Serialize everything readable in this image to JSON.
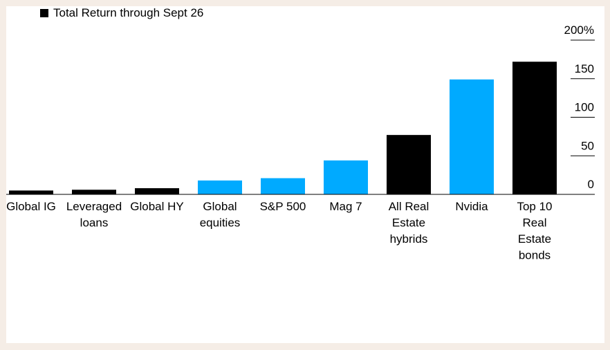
{
  "colors": {
    "background": "#f5ede6",
    "panel": "#ffffff",
    "black_series": "#000000",
    "blue_series": "#00aaff"
  },
  "legend": {
    "label": "Total Return through Sept 26",
    "icon": "black-square-icon"
  },
  "chart_data": {
    "type": "bar",
    "title": "",
    "xlabel": "",
    "ylabel": "",
    "ylim": [
      0,
      200
    ],
    "yticks": [
      0,
      50,
      100,
      150,
      200
    ],
    "ytick_labels": [
      "0",
      "50",
      "100",
      "150",
      "200%"
    ],
    "y_axis_position": "right",
    "grid": false,
    "legend_position": "top-left",
    "categories": [
      "Global IG",
      "Leveraged loans",
      "Global HY",
      "Global equities",
      "S&P 500",
      "Mag 7",
      "All Real Estate hybrids",
      "Nvidia",
      "Top 10 Real Estate bonds"
    ],
    "category_label_lines": [
      [
        "Global IG"
      ],
      [
        "Leveraged",
        "loans"
      ],
      [
        "Global HY"
      ],
      [
        "Global",
        "equities"
      ],
      [
        "S&P 500"
      ],
      [
        "Mag 7"
      ],
      [
        "All Real",
        "Estate",
        "hybrids"
      ],
      [
        "Nvidia"
      ],
      [
        "Top 10",
        "Real",
        "Estate",
        "bonds"
      ]
    ],
    "values": [
      5,
      6,
      8,
      18,
      21,
      44,
      77,
      149,
      172
    ],
    "bar_colors": [
      "#000000",
      "#000000",
      "#000000",
      "#00aaff",
      "#00aaff",
      "#00aaff",
      "#000000",
      "#00aaff",
      "#000000"
    ]
  }
}
